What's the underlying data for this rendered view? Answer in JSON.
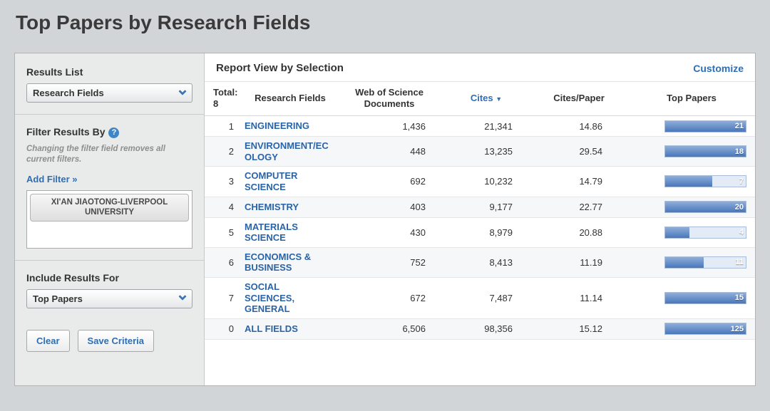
{
  "page": {
    "title": "Top Papers by Research Fields"
  },
  "colors": {
    "link_blue": "#2f6eb2",
    "field_link_blue": "#2963a8",
    "bar_fill": "#4a77ba",
    "bar_background": "#e3ebf6",
    "sidebar_background": "#e9eaea",
    "page_background": "#d1d5d8"
  },
  "sidebar": {
    "results_list_label": "Results List",
    "results_list_value": "Research Fields",
    "filter_section": {
      "title": "Filter Results By",
      "help_icon": "?",
      "note": "Changing the filter field removes all current filters.",
      "add_filter_label": "Add Filter »",
      "selected_filter": "XI'AN JIAOTONG-LIVERPOOL UNIVERSITY"
    },
    "include_results_label": "Include Results For",
    "include_results_value": "Top Papers",
    "clear_button": "Clear",
    "save_button": "Save Criteria"
  },
  "report": {
    "header": "Report View by Selection",
    "customize_label": "Customize",
    "total_label": "Total:",
    "total_value": "8",
    "sort_icon": "▼",
    "columns": [
      "Research Fields",
      "Web of Science Documents",
      "Cites",
      "Cites/Paper",
      "Top Papers"
    ],
    "rows": [
      {
        "rank": "1",
        "field": "ENGINEERING",
        "docs": "1,436",
        "cites": "21,341",
        "cites_per_paper": "14.86",
        "top_papers": "21",
        "bar_pct": 100
      },
      {
        "rank": "2",
        "field": "ENVIRONMENT/ECOLOGY",
        "docs": "448",
        "cites": "13,235",
        "cites_per_paper": "29.54",
        "top_papers": "18",
        "bar_pct": 100
      },
      {
        "rank": "3",
        "field": "COMPUTER SCIENCE",
        "docs": "692",
        "cites": "10,232",
        "cites_per_paper": "14.79",
        "top_papers": "7",
        "bar_pct": 58
      },
      {
        "rank": "4",
        "field": "CHEMISTRY",
        "docs": "403",
        "cites": "9,177",
        "cites_per_paper": "22.77",
        "top_papers": "20",
        "bar_pct": 100
      },
      {
        "rank": "5",
        "field": "MATERIALS SCIENCE",
        "docs": "430",
        "cites": "8,979",
        "cites_per_paper": "20.88",
        "top_papers": "4",
        "bar_pct": 30
      },
      {
        "rank": "6",
        "field": "ECONOMICS & BUSINESS",
        "docs": "752",
        "cites": "8,413",
        "cites_per_paper": "11.19",
        "top_papers": "11",
        "bar_pct": 48
      },
      {
        "rank": "7",
        "field": "SOCIAL SCIENCES, GENERAL",
        "docs": "672",
        "cites": "7,487",
        "cites_per_paper": "11.14",
        "top_papers": "15",
        "bar_pct": 100
      },
      {
        "rank": "0",
        "field": "ALL FIELDS",
        "docs": "6,506",
        "cites": "98,356",
        "cites_per_paper": "15.12",
        "top_papers": "125",
        "bar_pct": 100
      }
    ]
  }
}
